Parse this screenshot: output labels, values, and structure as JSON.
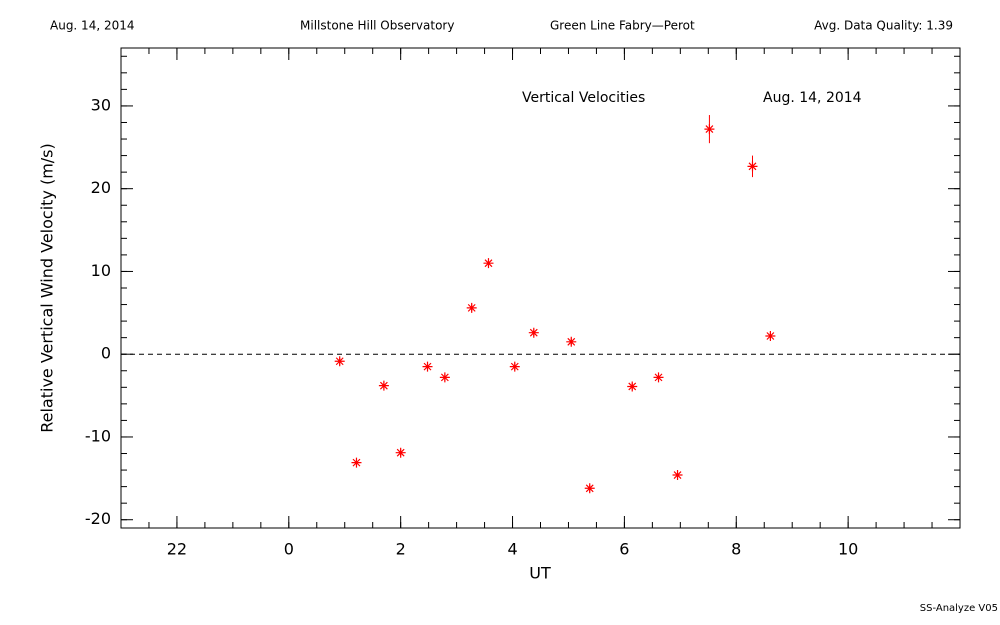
{
  "chart_data": {
    "type": "scatter",
    "header": [
      "Aug. 14, 2014",
      "Millstone Hill Observatory",
      "Green Line Fabry—Perot",
      "Avg. Data Quality: 1.39"
    ],
    "title": "Vertical Velocities",
    "subtitle": "Aug. 14, 2014",
    "xlabel": "UT",
    "ylabel": "Relative Vertical Wind Velocity (m/s)",
    "footer": "SS-Analyze V05",
    "xlim": [
      -3,
      12
    ],
    "ylim": [
      -21,
      37
    ],
    "xticks": [
      {
        "value": -2,
        "label": "22"
      },
      0,
      2,
      4,
      6,
      8,
      10
    ],
    "yticks": [
      -20,
      -10,
      0,
      10,
      20,
      30
    ],
    "xminor": 0.5,
    "yminor": 2,
    "hline": 0,
    "series": [
      {
        "color": "#ff0000",
        "x": [
          0.91,
          1.21,
          1.7,
          2.0,
          2.48,
          2.79,
          3.27,
          3.57,
          4.04,
          4.38,
          5.05,
          5.38,
          6.14,
          6.61,
          6.95,
          7.52,
          8.29,
          8.61
        ],
        "values": [
          -0.85,
          -13.1,
          -3.8,
          -11.9,
          -1.5,
          -2.8,
          5.6,
          11.0,
          -1.5,
          2.6,
          1.5,
          -16.2,
          -3.9,
          -2.8,
          -14.6,
          27.2,
          22.7,
          2.2
        ],
        "errors": [
          0.4,
          0.4,
          0.4,
          0.4,
          0.4,
          0.4,
          0.4,
          0.4,
          0.4,
          0.4,
          0.4,
          0.4,
          0.4,
          0.4,
          0.4,
          1.7,
          1.3,
          0.4
        ]
      }
    ]
  }
}
